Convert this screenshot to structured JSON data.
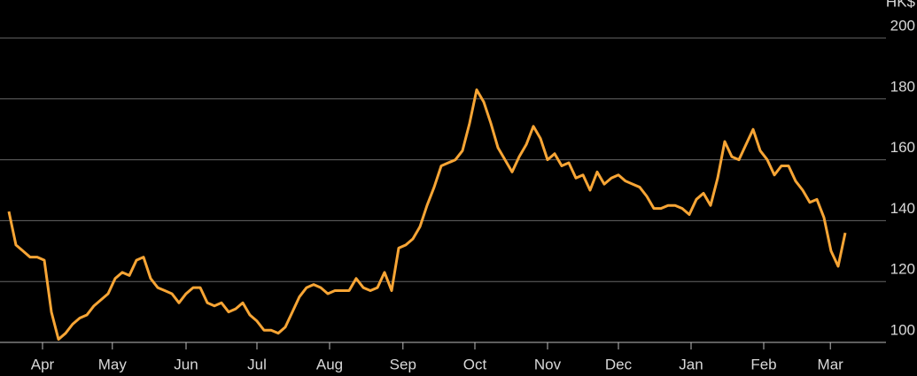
{
  "chart_data": {
    "type": "line",
    "y_unit": "HK$",
    "xlim": [
      0,
      118
    ],
    "xticks": [
      {
        "value": 4.75,
        "label": "Apr"
      },
      {
        "value": 14.6,
        "label": "May"
      },
      {
        "value": 25,
        "label": "Jun"
      },
      {
        "value": 35,
        "label": "Jul"
      },
      {
        "value": 45.25,
        "label": "Aug"
      },
      {
        "value": 55.6,
        "label": "Sep"
      },
      {
        "value": 65.75,
        "label": "Oct"
      },
      {
        "value": 76,
        "label": "Nov"
      },
      {
        "value": 86,
        "label": "Dec"
      },
      {
        "value": 96.25,
        "label": "Jan"
      },
      {
        "value": 106.5,
        "label": "Feb"
      },
      {
        "value": 115.9,
        "label": "Mar"
      }
    ],
    "ylim": [
      100,
      200
    ],
    "yticks": [
      100,
      120,
      140,
      160,
      180,
      200
    ],
    "grid": true,
    "color": "#f7a535",
    "values": [
      143,
      132,
      130,
      128,
      128,
      127,
      110,
      101,
      103,
      106,
      108,
      109,
      112,
      114,
      116,
      121,
      123,
      122,
      127,
      128,
      121,
      118,
      117,
      116,
      113,
      116,
      118,
      118,
      113,
      112,
      113,
      110,
      111,
      113,
      109,
      107,
      104,
      104,
      103,
      105,
      110,
      115,
      118,
      119,
      118,
      116,
      117,
      117,
      117,
      121,
      118,
      117,
      118,
      123,
      117,
      131,
      132,
      134,
      138,
      145,
      151,
      158,
      159,
      160,
      163,
      172,
      183,
      179,
      172,
      164,
      160,
      156,
      161,
      165,
      171,
      167,
      160,
      162,
      158,
      159,
      154,
      155,
      150,
      156,
      152,
      154,
      155,
      153,
      152,
      151,
      148,
      144,
      144,
      145,
      145,
      144,
      142,
      147,
      149,
      145,
      154,
      166,
      161,
      160,
      165,
      170,
      163,
      160,
      155,
      158,
      158,
      153,
      150,
      146,
      147,
      141,
      130,
      125,
      136
    ]
  }
}
